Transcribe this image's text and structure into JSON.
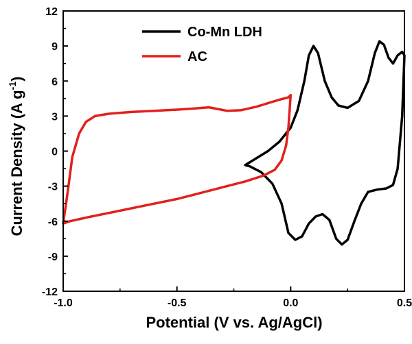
{
  "chart_data": {
    "type": "line",
    "xlabel": "Potential (V vs. Ag/AgCl)",
    "ylabel_main": "Current Density (A g",
    "ylabel_sup": "-1",
    "ylabel_end": ")",
    "xlim": [
      -1.0,
      0.5
    ],
    "ylim": [
      -12,
      12
    ],
    "xticks": [
      -1.0,
      -0.5,
      0.0,
      0.5
    ],
    "xtick_labels": [
      "-1.0",
      "-0.5",
      "0.0",
      "0.5"
    ],
    "yticks": [
      -12,
      -9,
      -6,
      -3,
      0,
      3,
      6,
      9,
      12
    ],
    "ytick_labels": [
      "-12",
      "-9",
      "-6",
      "-3",
      "0",
      "3",
      "6",
      "9",
      "12"
    ],
    "grid": false,
    "legend_position": "top-center",
    "series": [
      {
        "name": "Co-Mn LDH",
        "color": "#000000",
        "closed": true,
        "points": [
          [
            -0.2,
            -1.2
          ],
          [
            -0.15,
            -0.6
          ],
          [
            -0.1,
            0.0
          ],
          [
            -0.05,
            0.8
          ],
          [
            0.0,
            2.0
          ],
          [
            0.03,
            3.5
          ],
          [
            0.06,
            6.0
          ],
          [
            0.08,
            8.2
          ],
          [
            0.1,
            9.0
          ],
          [
            0.12,
            8.4
          ],
          [
            0.15,
            6.0
          ],
          [
            0.18,
            4.6
          ],
          [
            0.21,
            3.9
          ],
          [
            0.25,
            3.7
          ],
          [
            0.3,
            4.3
          ],
          [
            0.34,
            6.0
          ],
          [
            0.37,
            8.4
          ],
          [
            0.39,
            9.4
          ],
          [
            0.41,
            9.1
          ],
          [
            0.43,
            8.0
          ],
          [
            0.45,
            7.5
          ],
          [
            0.47,
            8.2
          ],
          [
            0.49,
            8.5
          ],
          [
            0.5,
            8.2
          ],
          [
            0.49,
            3.0
          ],
          [
            0.47,
            -1.5
          ],
          [
            0.45,
            -2.9
          ],
          [
            0.42,
            -3.2
          ],
          [
            0.38,
            -3.3
          ],
          [
            0.34,
            -3.5
          ],
          [
            0.31,
            -4.5
          ],
          [
            0.28,
            -6.0
          ],
          [
            0.25,
            -7.6
          ],
          [
            0.225,
            -8.0
          ],
          [
            0.2,
            -7.5
          ],
          [
            0.17,
            -5.9
          ],
          [
            0.14,
            -5.4
          ],
          [
            0.11,
            -5.6
          ],
          [
            0.08,
            -6.2
          ],
          [
            0.05,
            -7.3
          ],
          [
            0.02,
            -7.6
          ],
          [
            -0.01,
            -7.0
          ],
          [
            -0.04,
            -4.5
          ],
          [
            -0.08,
            -2.8
          ],
          [
            -0.13,
            -1.8
          ],
          [
            -0.18,
            -1.3
          ],
          [
            -0.2,
            -1.2
          ]
        ]
      },
      {
        "name": "AC",
        "color": "#e2201c",
        "closed": true,
        "points": [
          [
            -1.0,
            -6.2
          ],
          [
            -0.98,
            -3.5
          ],
          [
            -0.96,
            -0.5
          ],
          [
            -0.93,
            1.5
          ],
          [
            -0.9,
            2.5
          ],
          [
            -0.86,
            3.0
          ],
          [
            -0.8,
            3.2
          ],
          [
            -0.7,
            3.35
          ],
          [
            -0.6,
            3.45
          ],
          [
            -0.5,
            3.55
          ],
          [
            -0.42,
            3.65
          ],
          [
            -0.36,
            3.75
          ],
          [
            -0.32,
            3.6
          ],
          [
            -0.28,
            3.45
          ],
          [
            -0.22,
            3.5
          ],
          [
            -0.15,
            3.8
          ],
          [
            -0.1,
            4.1
          ],
          [
            -0.05,
            4.4
          ],
          [
            -0.01,
            4.6
          ],
          [
            0.0,
            4.8
          ],
          [
            -0.01,
            2.0
          ],
          [
            -0.02,
            0.5
          ],
          [
            -0.04,
            -0.8
          ],
          [
            -0.07,
            -1.6
          ],
          [
            -0.12,
            -2.1
          ],
          [
            -0.2,
            -2.6
          ],
          [
            -0.3,
            -3.1
          ],
          [
            -0.4,
            -3.6
          ],
          [
            -0.5,
            -4.1
          ],
          [
            -0.6,
            -4.5
          ],
          [
            -0.7,
            -4.9
          ],
          [
            -0.8,
            -5.3
          ],
          [
            -0.9,
            -5.7
          ],
          [
            -0.97,
            -6.0
          ],
          [
            -1.0,
            -6.2
          ]
        ]
      }
    ]
  }
}
